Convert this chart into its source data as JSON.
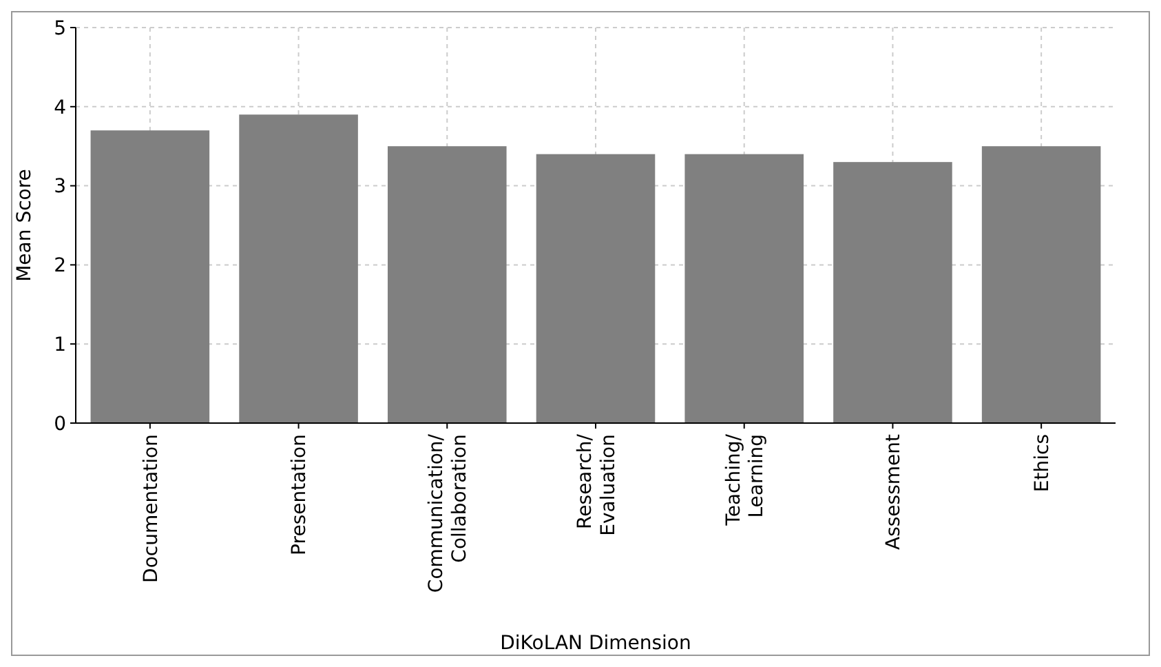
{
  "chart_data": {
    "type": "bar",
    "xlabel": "DiKoLAN Dimension",
    "ylabel": "Mean Score",
    "categories": [
      "Documentation",
      "Presentation",
      "Communication/\nCollaboration",
      "Research/\nEvaluation",
      "Teaching/\nLearning",
      "Assessment",
      "Ethics"
    ],
    "values": [
      3.7,
      3.9,
      3.5,
      3.4,
      3.4,
      3.3,
      3.5
    ],
    "color": "#808080",
    "ylim": [
      0,
      5
    ],
    "yticks": [
      0,
      1,
      2,
      3,
      4,
      5
    ],
    "grid": true
  }
}
